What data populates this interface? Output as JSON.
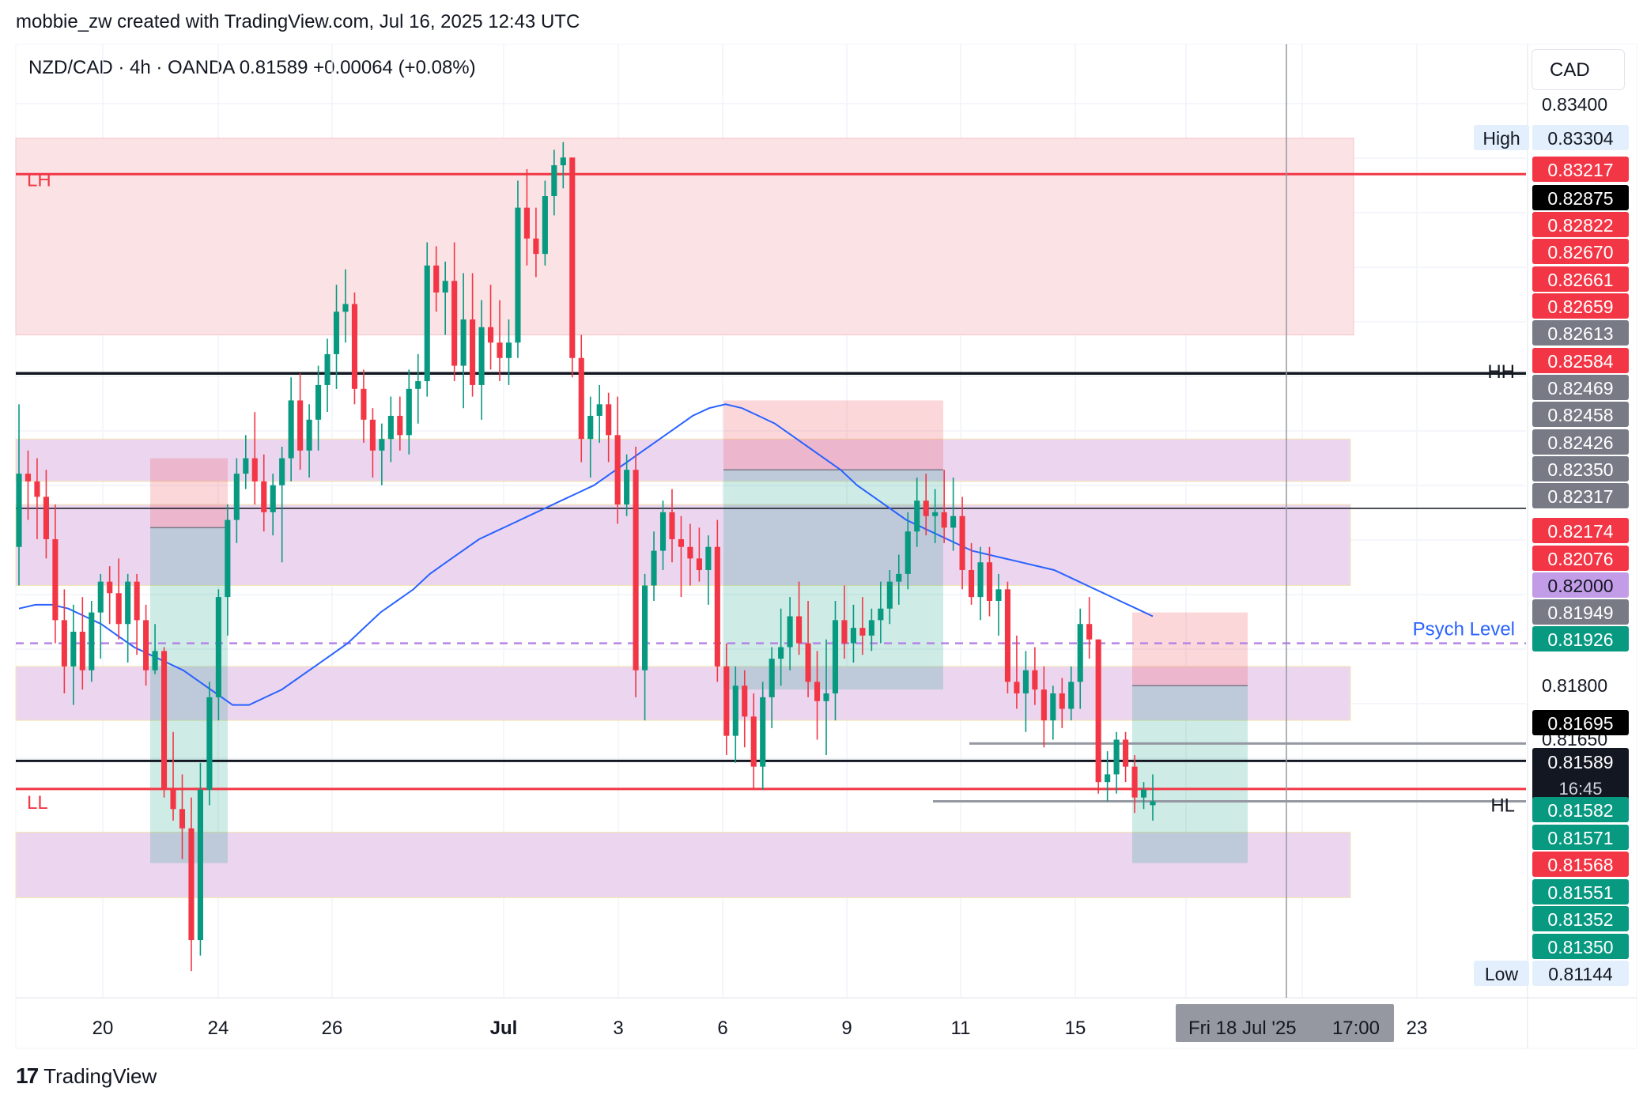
{
  "header": {
    "credit": "mobbie_zw created with TradingView.com, Jul 16, 2025 12:43 UTC",
    "symbol_line": "NZD/CAD · 4h · OANDA  0.81589  +0.00064 (+0.08%)"
  },
  "axis": {
    "currency": "CAD"
  },
  "footer": {
    "brand": "TradingView"
  },
  "colors": {
    "up": "#089981",
    "down": "#f23645",
    "ma": "#2962ff",
    "supply_zone": "#fbe2e4",
    "demand_zone": "#ecd6ef",
    "psych": "#b684e6"
  },
  "chart_data": {
    "type": "candlestick",
    "ylim": [
      0.8106,
      0.8344
    ],
    "price_axis_ticks": [
      "0.83400",
      "0.81800",
      "0.81650"
    ],
    "x_tick_labels": [
      "20",
      "24",
      "26",
      "Jul",
      "3",
      "6",
      "9",
      "11",
      "15",
      "23"
    ],
    "crosshair_time_label": "Fri 18 Jul '25",
    "crosshair_clock_label": "17:00",
    "price_labels": [
      {
        "text": "0.83304",
        "price": 0.83304,
        "bg": "#e3effd",
        "fg": "#131722",
        "tag": "High"
      },
      {
        "text": "0.83217",
        "price": 0.83217,
        "bg": "#f23645",
        "fg": "#ffffff"
      },
      {
        "text": "0.82875",
        "price": 0.82875,
        "bg": "#000000",
        "fg": "#ffffff"
      },
      {
        "text": "0.82822",
        "price": 0.82822,
        "bg": "#f23645",
        "fg": "#ffffff"
      },
      {
        "text": "0.82670",
        "price": 0.8267,
        "bg": "#f23645",
        "fg": "#ffffff"
      },
      {
        "text": "0.82661",
        "price": 0.82661,
        "bg": "#f23645",
        "fg": "#ffffff"
      },
      {
        "text": "0.82659",
        "price": 0.82659,
        "bg": "#f23645",
        "fg": "#ffffff"
      },
      {
        "text": "0.82613",
        "price": 0.82613,
        "bg": "#787b86",
        "fg": "#ffffff"
      },
      {
        "text": "0.82584",
        "price": 0.82584,
        "bg": "#f23645",
        "fg": "#ffffff"
      },
      {
        "text": "0.82469",
        "price": 0.82469,
        "bg": "#787b86",
        "fg": "#ffffff"
      },
      {
        "text": "0.82458",
        "price": 0.82458,
        "bg": "#787b86",
        "fg": "#ffffff"
      },
      {
        "text": "0.82426",
        "price": 0.82426,
        "bg": "#787b86",
        "fg": "#ffffff"
      },
      {
        "text": "0.82350",
        "price": 0.8235,
        "bg": "#787b86",
        "fg": "#ffffff"
      },
      {
        "text": "0.82317",
        "price": 0.82317,
        "bg": "#787b86",
        "fg": "#ffffff"
      },
      {
        "text": "0.82174",
        "price": 0.82174,
        "bg": "#f23645",
        "fg": "#ffffff"
      },
      {
        "text": "0.82076",
        "price": 0.82076,
        "bg": "#f23645",
        "fg": "#ffffff"
      },
      {
        "text": "0.82000",
        "price": 0.82,
        "bg": "#c39ce8",
        "fg": "#131722"
      },
      {
        "text": "0.81949",
        "price": 0.81949,
        "bg": "#787b86",
        "fg": "#ffffff"
      },
      {
        "text": "0.81926",
        "price": 0.81926,
        "bg": "#089981",
        "fg": "#ffffff"
      },
      {
        "text": "0.81695",
        "price": 0.81695,
        "bg": "#000000",
        "fg": "#ffffff"
      },
      {
        "text": "0.81589",
        "price": 0.81589,
        "bg": "#131722",
        "fg": "#ffffff",
        "sub": "16:45"
      },
      {
        "text": "0.81582",
        "price": 0.81582,
        "bg": "#089981",
        "fg": "#ffffff"
      },
      {
        "text": "0.81571",
        "price": 0.81571,
        "bg": "#089981",
        "fg": "#ffffff"
      },
      {
        "text": "0.81568",
        "price": 0.81568,
        "bg": "#f23645",
        "fg": "#ffffff"
      },
      {
        "text": "0.81551",
        "price": 0.81551,
        "bg": "#089981",
        "fg": "#ffffff"
      },
      {
        "text": "0.81352",
        "price": 0.81352,
        "bg": "#089981",
        "fg": "#ffffff"
      },
      {
        "text": "0.81350",
        "price": 0.8135,
        "bg": "#089981",
        "fg": "#ffffff"
      },
      {
        "text": "0.81144",
        "price": 0.81144,
        "bg": "#e3effd",
        "fg": "#131722",
        "tag": "Low"
      }
    ],
    "annotations": [
      {
        "text": "LH",
        "price": 0.8321,
        "color": "#f23645"
      },
      {
        "text": "LL",
        "price": 0.8162,
        "color": "#f23645"
      },
      {
        "text": "HH",
        "price": 0.8275,
        "color": "#131722"
      },
      {
        "text": "HL",
        "price": 0.8165,
        "color": "#131722"
      },
      {
        "text": "Psych Level",
        "price": 0.82,
        "color": "#2962ff"
      }
    ],
    "candles": [
      {
        "o": 0.8225,
        "h": 0.8262,
        "l": 0.8215,
        "c": 0.8244
      },
      {
        "o": 0.8244,
        "h": 0.825,
        "l": 0.8232,
        "c": 0.8242
      },
      {
        "o": 0.8242,
        "h": 0.8248,
        "l": 0.8227,
        "c": 0.8238
      },
      {
        "o": 0.8238,
        "h": 0.8245,
        "l": 0.8222,
        "c": 0.8227
      },
      {
        "o": 0.8227,
        "h": 0.8236,
        "l": 0.82,
        "c": 0.8206
      },
      {
        "o": 0.8206,
        "h": 0.8214,
        "l": 0.8187,
        "c": 0.8194
      },
      {
        "o": 0.8194,
        "h": 0.821,
        "l": 0.8184,
        "c": 0.8203
      },
      {
        "o": 0.8203,
        "h": 0.8212,
        "l": 0.8188,
        "c": 0.8193
      },
      {
        "o": 0.8193,
        "h": 0.8211,
        "l": 0.819,
        "c": 0.8208
      },
      {
        "o": 0.8208,
        "h": 0.8218,
        "l": 0.8196,
        "c": 0.8216
      },
      {
        "o": 0.8216,
        "h": 0.822,
        "l": 0.8205,
        "c": 0.8213
      },
      {
        "o": 0.8213,
        "h": 0.8222,
        "l": 0.8201,
        "c": 0.8205
      },
      {
        "o": 0.8205,
        "h": 0.8218,
        "l": 0.8195,
        "c": 0.8216
      },
      {
        "o": 0.8216,
        "h": 0.8218,
        "l": 0.8197,
        "c": 0.8206
      },
      {
        "o": 0.8206,
        "h": 0.821,
        "l": 0.8189,
        "c": 0.8193
      },
      {
        "o": 0.8193,
        "h": 0.8205,
        "l": 0.8192,
        "c": 0.8198
      },
      {
        "o": 0.8198,
        "h": 0.8199,
        "l": 0.816,
        "c": 0.8162
      },
      {
        "o": 0.8162,
        "h": 0.8177,
        "l": 0.8154,
        "c": 0.8157
      },
      {
        "o": 0.8157,
        "h": 0.8166,
        "l": 0.8144,
        "c": 0.8152
      },
      {
        "o": 0.8152,
        "h": 0.816,
        "l": 0.8115,
        "c": 0.8123
      },
      {
        "o": 0.8123,
        "h": 0.8169,
        "l": 0.8119,
        "c": 0.8162
      },
      {
        "o": 0.8162,
        "h": 0.819,
        "l": 0.8158,
        "c": 0.8186
      },
      {
        "o": 0.8186,
        "h": 0.8214,
        "l": 0.818,
        "c": 0.8212
      },
      {
        "o": 0.8212,
        "h": 0.8236,
        "l": 0.8202,
        "c": 0.8232
      },
      {
        "o": 0.8232,
        "h": 0.8248,
        "l": 0.8226,
        "c": 0.8244
      },
      {
        "o": 0.8244,
        "h": 0.8254,
        "l": 0.824,
        "c": 0.8248
      },
      {
        "o": 0.8248,
        "h": 0.826,
        "l": 0.8236,
        "c": 0.8242
      },
      {
        "o": 0.8242,
        "h": 0.8249,
        "l": 0.8229,
        "c": 0.8234
      },
      {
        "o": 0.8234,
        "h": 0.8244,
        "l": 0.8228,
        "c": 0.8241
      },
      {
        "o": 0.8241,
        "h": 0.8251,
        "l": 0.8221,
        "c": 0.8248
      },
      {
        "o": 0.8248,
        "h": 0.8269,
        "l": 0.8242,
        "c": 0.8263
      },
      {
        "o": 0.8263,
        "h": 0.827,
        "l": 0.8245,
        "c": 0.825
      },
      {
        "o": 0.825,
        "h": 0.8262,
        "l": 0.8243,
        "c": 0.8258
      },
      {
        "o": 0.8258,
        "h": 0.8272,
        "l": 0.825,
        "c": 0.8267
      },
      {
        "o": 0.8267,
        "h": 0.8279,
        "l": 0.826,
        "c": 0.8275
      },
      {
        "o": 0.8275,
        "h": 0.8293,
        "l": 0.8266,
        "c": 0.8286
      },
      {
        "o": 0.8286,
        "h": 0.8297,
        "l": 0.8278,
        "c": 0.8288
      },
      {
        "o": 0.8288,
        "h": 0.8291,
        "l": 0.8262,
        "c": 0.8266
      },
      {
        "o": 0.8266,
        "h": 0.8271,
        "l": 0.8252,
        "c": 0.8258
      },
      {
        "o": 0.8258,
        "h": 0.8261,
        "l": 0.8243,
        "c": 0.825
      },
      {
        "o": 0.825,
        "h": 0.8257,
        "l": 0.8241,
        "c": 0.8253
      },
      {
        "o": 0.8253,
        "h": 0.8264,
        "l": 0.8247,
        "c": 0.8259
      },
      {
        "o": 0.8259,
        "h": 0.8264,
        "l": 0.825,
        "c": 0.8254
      },
      {
        "o": 0.8254,
        "h": 0.8271,
        "l": 0.8249,
        "c": 0.8266
      },
      {
        "o": 0.8266,
        "h": 0.8275,
        "l": 0.8257,
        "c": 0.8268
      },
      {
        "o": 0.8268,
        "h": 0.8304,
        "l": 0.8264,
        "c": 0.8298
      },
      {
        "o": 0.8298,
        "h": 0.8303,
        "l": 0.8286,
        "c": 0.8291
      },
      {
        "o": 0.8291,
        "h": 0.8299,
        "l": 0.828,
        "c": 0.8294
      },
      {
        "o": 0.8294,
        "h": 0.8304,
        "l": 0.8268,
        "c": 0.8272
      },
      {
        "o": 0.8272,
        "h": 0.8296,
        "l": 0.8261,
        "c": 0.8284
      },
      {
        "o": 0.8284,
        "h": 0.8296,
        "l": 0.8264,
        "c": 0.8267
      },
      {
        "o": 0.8267,
        "h": 0.8289,
        "l": 0.8258,
        "c": 0.8282
      },
      {
        "o": 0.8282,
        "h": 0.8293,
        "l": 0.8271,
        "c": 0.8278
      },
      {
        "o": 0.8278,
        "h": 0.8289,
        "l": 0.8268,
        "c": 0.8274
      },
      {
        "o": 0.8274,
        "h": 0.8284,
        "l": 0.8267,
        "c": 0.8278
      },
      {
        "o": 0.8278,
        "h": 0.832,
        "l": 0.8274,
        "c": 0.8313
      },
      {
        "o": 0.8313,
        "h": 0.8323,
        "l": 0.8298,
        "c": 0.8305
      },
      {
        "o": 0.8305,
        "h": 0.8313,
        "l": 0.8295,
        "c": 0.8301
      },
      {
        "o": 0.8301,
        "h": 0.832,
        "l": 0.8298,
        "c": 0.8316
      },
      {
        "o": 0.8316,
        "h": 0.8328,
        "l": 0.8311,
        "c": 0.8324
      },
      {
        "o": 0.8324,
        "h": 0.833,
        "l": 0.8318,
        "c": 0.8326
      },
      {
        "o": 0.8326,
        "h": 0.8326,
        "l": 0.8269,
        "c": 0.8274
      },
      {
        "o": 0.8274,
        "h": 0.828,
        "l": 0.8247,
        "c": 0.8253
      },
      {
        "o": 0.8253,
        "h": 0.8264,
        "l": 0.8243,
        "c": 0.8259
      },
      {
        "o": 0.8259,
        "h": 0.8267,
        "l": 0.8252,
        "c": 0.8262
      },
      {
        "o": 0.8262,
        "h": 0.8265,
        "l": 0.8247,
        "c": 0.8254
      },
      {
        "o": 0.8254,
        "h": 0.8264,
        "l": 0.8231,
        "c": 0.8236
      },
      {
        "o": 0.8236,
        "h": 0.8249,
        "l": 0.8233,
        "c": 0.8245
      },
      {
        "o": 0.8245,
        "h": 0.8251,
        "l": 0.8186,
        "c": 0.8193
      },
      {
        "o": 0.8193,
        "h": 0.8218,
        "l": 0.818,
        "c": 0.8215
      },
      {
        "o": 0.8215,
        "h": 0.8229,
        "l": 0.8211,
        "c": 0.8224
      },
      {
        "o": 0.8224,
        "h": 0.8237,
        "l": 0.8219,
        "c": 0.8234
      },
      {
        "o": 0.8234,
        "h": 0.824,
        "l": 0.8221,
        "c": 0.8227
      },
      {
        "o": 0.8227,
        "h": 0.8233,
        "l": 0.8212,
        "c": 0.8225
      },
      {
        "o": 0.8225,
        "h": 0.8231,
        "l": 0.8215,
        "c": 0.8222
      },
      {
        "o": 0.8222,
        "h": 0.823,
        "l": 0.8216,
        "c": 0.8219
      },
      {
        "o": 0.8219,
        "h": 0.8228,
        "l": 0.821,
        "c": 0.8225
      },
      {
        "o": 0.8225,
        "h": 0.8232,
        "l": 0.819,
        "c": 0.8194
      },
      {
        "o": 0.8194,
        "h": 0.82,
        "l": 0.8171,
        "c": 0.8176
      },
      {
        "o": 0.8176,
        "h": 0.8194,
        "l": 0.8169,
        "c": 0.8189
      },
      {
        "o": 0.8189,
        "h": 0.8193,
        "l": 0.8173,
        "c": 0.8181
      },
      {
        "o": 0.8181,
        "h": 0.8187,
        "l": 0.8162,
        "c": 0.8168
      },
      {
        "o": 0.8168,
        "h": 0.819,
        "l": 0.8162,
        "c": 0.8186
      },
      {
        "o": 0.8186,
        "h": 0.8199,
        "l": 0.8178,
        "c": 0.8196
      },
      {
        "o": 0.8196,
        "h": 0.8209,
        "l": 0.8189,
        "c": 0.8199
      },
      {
        "o": 0.8199,
        "h": 0.8212,
        "l": 0.8193,
        "c": 0.8207
      },
      {
        "o": 0.8207,
        "h": 0.8216,
        "l": 0.8197,
        "c": 0.82
      },
      {
        "o": 0.82,
        "h": 0.8211,
        "l": 0.8186,
        "c": 0.819
      },
      {
        "o": 0.819,
        "h": 0.8198,
        "l": 0.8175,
        "c": 0.8185
      },
      {
        "o": 0.8185,
        "h": 0.8201,
        "l": 0.8171,
        "c": 0.8187
      },
      {
        "o": 0.8187,
        "h": 0.8211,
        "l": 0.818,
        "c": 0.8206
      },
      {
        "o": 0.8206,
        "h": 0.8215,
        "l": 0.8196,
        "c": 0.82
      },
      {
        "o": 0.82,
        "h": 0.821,
        "l": 0.8195,
        "c": 0.8204
      },
      {
        "o": 0.8204,
        "h": 0.8212,
        "l": 0.8197,
        "c": 0.8202
      },
      {
        "o": 0.8202,
        "h": 0.8209,
        "l": 0.8198,
        "c": 0.8206
      },
      {
        "o": 0.8206,
        "h": 0.8216,
        "l": 0.82,
        "c": 0.8209
      },
      {
        "o": 0.8209,
        "h": 0.8219,
        "l": 0.8205,
        "c": 0.8216
      },
      {
        "o": 0.8216,
        "h": 0.8223,
        "l": 0.821,
        "c": 0.8218
      },
      {
        "o": 0.8218,
        "h": 0.8234,
        "l": 0.8214,
        "c": 0.8229
      },
      {
        "o": 0.8229,
        "h": 0.8243,
        "l": 0.8225,
        "c": 0.8237
      },
      {
        "o": 0.8237,
        "h": 0.8244,
        "l": 0.8228,
        "c": 0.8233
      },
      {
        "o": 0.8233,
        "h": 0.824,
        "l": 0.8226,
        "c": 0.8234
      },
      {
        "o": 0.8234,
        "h": 0.8245,
        "l": 0.8226,
        "c": 0.823
      },
      {
        "o": 0.823,
        "h": 0.8243,
        "l": 0.8224,
        "c": 0.8233
      },
      {
        "o": 0.8233,
        "h": 0.8238,
        "l": 0.8214,
        "c": 0.8219
      },
      {
        "o": 0.8219,
        "h": 0.8226,
        "l": 0.821,
        "c": 0.8212
      },
      {
        "o": 0.8212,
        "h": 0.8225,
        "l": 0.8206,
        "c": 0.8221
      },
      {
        "o": 0.8221,
        "h": 0.8225,
        "l": 0.8207,
        "c": 0.8211
      },
      {
        "o": 0.8211,
        "h": 0.8218,
        "l": 0.8202,
        "c": 0.8214
      },
      {
        "o": 0.8214,
        "h": 0.8216,
        "l": 0.8187,
        "c": 0.819
      },
      {
        "o": 0.819,
        "h": 0.8202,
        "l": 0.8183,
        "c": 0.8187
      },
      {
        "o": 0.8187,
        "h": 0.8198,
        "l": 0.8177,
        "c": 0.8193
      },
      {
        "o": 0.8193,
        "h": 0.8199,
        "l": 0.8184,
        "c": 0.8188
      },
      {
        "o": 0.8188,
        "h": 0.8194,
        "l": 0.8173,
        "c": 0.818
      },
      {
        "o": 0.818,
        "h": 0.8189,
        "l": 0.8175,
        "c": 0.8187
      },
      {
        "o": 0.8187,
        "h": 0.8191,
        "l": 0.8178,
        "c": 0.8183
      },
      {
        "o": 0.8183,
        "h": 0.8194,
        "l": 0.818,
        "c": 0.819
      },
      {
        "o": 0.819,
        "h": 0.8209,
        "l": 0.8183,
        "c": 0.8205
      },
      {
        "o": 0.8205,
        "h": 0.8212,
        "l": 0.8196,
        "c": 0.8201
      },
      {
        "o": 0.8201,
        "h": 0.8201,
        "l": 0.8161,
        "c": 0.8164
      },
      {
        "o": 0.8164,
        "h": 0.8172,
        "l": 0.8159,
        "c": 0.8166
      },
      {
        "o": 0.8166,
        "h": 0.8177,
        "l": 0.8161,
        "c": 0.8175
      },
      {
        "o": 0.8175,
        "h": 0.8177,
        "l": 0.8164,
        "c": 0.8168
      },
      {
        "o": 0.8168,
        "h": 0.8171,
        "l": 0.8156,
        "c": 0.816
      },
      {
        "o": 0.816,
        "h": 0.8164,
        "l": 0.8157,
        "c": 0.8162
      },
      {
        "o": 0.8158,
        "h": 0.8166,
        "l": 0.8154,
        "c": 0.8159
      }
    ],
    "moving_average": [
      0.8209,
      0.821,
      0.821,
      0.8209,
      0.8207,
      0.8205,
      0.8202,
      0.8199,
      0.8197,
      0.8195,
      0.8193,
      0.819,
      0.8187,
      0.8184,
      0.8184,
      0.8186,
      0.8188,
      0.8191,
      0.8194,
      0.8197,
      0.82,
      0.8204,
      0.8208,
      0.8211,
      0.8214,
      0.8218,
      0.8221,
      0.8224,
      0.8227,
      0.8229,
      0.8231,
      0.8233,
      0.8235,
      0.8237,
      0.8239,
      0.8241,
      0.8244,
      0.8247,
      0.825,
      0.8253,
      0.8256,
      0.8259,
      0.8261,
      0.8262,
      0.8261,
      0.8259,
      0.8257,
      0.8254,
      0.8251,
      0.8248,
      0.8245,
      0.8241,
      0.8238,
      0.8235,
      0.8232,
      0.823,
      0.8228,
      0.8226,
      0.8224,
      0.8223,
      0.8222,
      0.8221,
      0.822,
      0.8219,
      0.8217,
      0.8215,
      0.8213,
      0.8211,
      0.8209,
      0.8207
    ]
  }
}
